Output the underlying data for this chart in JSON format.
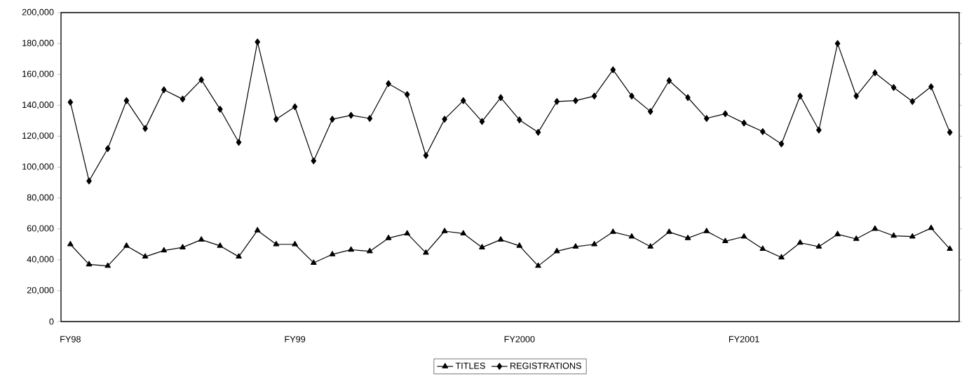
{
  "chart_data": {
    "type": "line",
    "categories": [
      "FY98",
      null,
      null,
      null,
      null,
      null,
      null,
      null,
      null,
      null,
      null,
      null,
      "FY99",
      null,
      null,
      null,
      null,
      null,
      null,
      null,
      null,
      null,
      null,
      null,
      "FY2000",
      null,
      null,
      null,
      null,
      null,
      null,
      null,
      null,
      null,
      null,
      null,
      "FY2001",
      null,
      null,
      null,
      null,
      null,
      null,
      null,
      null,
      null,
      null,
      null
    ],
    "series": [
      {
        "name": "TITLES",
        "color": "#000000",
        "marker": "triangle",
        "values": [
          50000,
          37000,
          36000,
          49000,
          42000,
          46000,
          48000,
          53000,
          49000,
          42000,
          59000,
          50000,
          50000,
          38000,
          43500,
          46500,
          45500,
          54000,
          57000,
          44500,
          58500,
          57000,
          48000,
          53000,
          49000,
          36000,
          45500,
          48500,
          50000,
          58000,
          55000,
          48500,
          58000,
          54000,
          58500,
          52000,
          55000,
          47000,
          41500,
          51000,
          48500,
          56500,
          53500,
          60000,
          55500,
          55000,
          60500,
          47000
        ]
      },
      {
        "name": "REGISTRATIONS",
        "color": "#000000",
        "marker": "diamond",
        "values": [
          142000,
          91000,
          112000,
          143000,
          125000,
          150000,
          144000,
          156500,
          137500,
          116000,
          181000,
          131000,
          139000,
          104000,
          131000,
          133500,
          131500,
          154000,
          147000,
          107500,
          131000,
          143000,
          129500,
          145000,
          130500,
          122500,
          142500,
          143000,
          146000,
          163000,
          146000,
          136000,
          156000,
          145000,
          131500,
          134500,
          128500,
          123000,
          115000,
          146000,
          124000,
          180000,
          146000,
          161000,
          151500,
          142500,
          152000,
          122500
        ]
      }
    ],
    "ylim": [
      0,
      200000
    ],
    "yticks": [
      0,
      {
        "value": 20000,
        "label": "20,000"
      },
      {
        "value": 40000,
        "label": "40,000"
      },
      {
        "value": 60000,
        "label": "60,000"
      },
      {
        "value": 80000,
        "label": "80,000"
      },
      {
        "value": 100000,
        "label": "100,000"
      },
      {
        "value": 120000,
        "label": "120,000"
      },
      {
        "value": 140000,
        "label": "140,000"
      },
      {
        "value": 160000,
        "label": "160,000"
      },
      {
        "value": 180000,
        "label": "180,000"
      },
      {
        "value": 200000,
        "label": "200,000"
      }
    ],
    "legend": "bottom",
    "line_style": "solid"
  }
}
